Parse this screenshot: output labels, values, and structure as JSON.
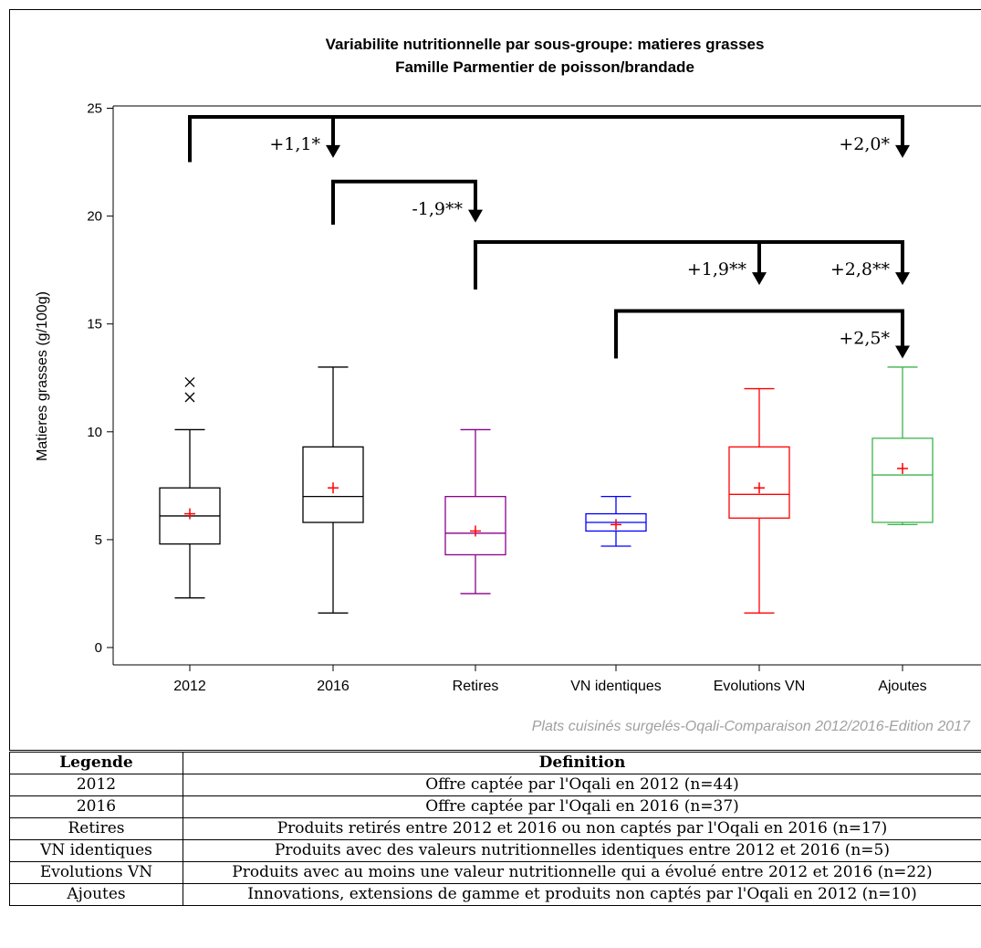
{
  "chart_data": {
    "type": "boxplot",
    "title": [
      "Variabilite nutritionnelle par sous-groupe: matieres grasses",
      "Famille Parmentier de poisson/brandade"
    ],
    "ylabel": "Matieres grasses (g/100g)",
    "xlabel": "",
    "ylim": [
      0,
      25
    ],
    "yticks": [
      0,
      5,
      10,
      15,
      20,
      25
    ],
    "grid": false,
    "categories": [
      "2012",
      "2016",
      "Retires",
      "VN identiques",
      "Evolutions VN",
      "Ajoutes"
    ],
    "boxes": [
      {
        "name": "2012",
        "color": "#000000",
        "min": 2.3,
        "q1": 4.8,
        "median": 6.1,
        "q3": 7.4,
        "max": 10.1,
        "mean": 6.2,
        "outliers": [
          11.6,
          12.3
        ]
      },
      {
        "name": "2016",
        "color": "#000000",
        "min": 1.6,
        "q1": 5.8,
        "median": 7.0,
        "q3": 9.3,
        "max": 13.0,
        "mean": 7.4,
        "outliers": []
      },
      {
        "name": "Retires",
        "color": "#8b008b",
        "min": 2.5,
        "q1": 4.3,
        "median": 5.3,
        "q3": 7.0,
        "max": 10.1,
        "mean": 5.4,
        "outliers": []
      },
      {
        "name": "VN identiques",
        "color": "#0000ff",
        "min": 4.7,
        "q1": 5.4,
        "median": 5.8,
        "q3": 6.2,
        "max": 7.0,
        "mean": 5.7,
        "outliers": []
      },
      {
        "name": "Evolutions VN",
        "color": "#ff0000",
        "min": 1.6,
        "q1": 6.0,
        "median": 7.1,
        "q3": 9.3,
        "max": 12.0,
        "mean": 7.4,
        "outliers": []
      },
      {
        "name": "Ajoutes",
        "color": "#3cb44b",
        "min": 5.7,
        "q1": 5.8,
        "median": 8.0,
        "q3": 9.7,
        "max": 13.0,
        "mean": 8.3,
        "outliers": []
      }
    ],
    "mean_color": "#ff0000",
    "annotations": [
      {
        "from": 0,
        "to": 1,
        "label": "+1,1*",
        "bar_y": 24.6,
        "start_y": 22.5,
        "end_y": 22.7
      },
      {
        "from": 0,
        "to": 5,
        "label": "+2,0*",
        "bar_y": 24.6,
        "start_y": 22.5,
        "end_y": 22.7
      },
      {
        "from": 1,
        "to": 2,
        "label": "-1,9**",
        "bar_y": 21.6,
        "start_y": 19.6,
        "end_y": 19.7
      },
      {
        "from": 2,
        "to": 4,
        "label": "+1,9**",
        "bar_y": 18.8,
        "start_y": 16.6,
        "end_y": 16.8
      },
      {
        "from": 2,
        "to": 5,
        "label": "+2,8**",
        "bar_y": 18.8,
        "start_y": 16.6,
        "end_y": 16.8
      },
      {
        "from": 3,
        "to": 5,
        "label": "+2,5*",
        "bar_y": 15.6,
        "start_y": 13.4,
        "end_y": 13.4
      }
    ],
    "source_note": "Plats cuisinés surgelés-Oqali-Comparaison 2012/2016-Edition 2017"
  },
  "legend_table": {
    "headers": [
      "Legende",
      "Definition"
    ],
    "rows": [
      [
        "2012",
        "Offre captée par l'Oqali en 2012 (n=44)"
      ],
      [
        "2016",
        "Offre captée par l'Oqali en 2016 (n=37)"
      ],
      [
        "Retires",
        "Produits retirés entre 2012 et 2016 ou non captés par l'Oqali en 2016 (n=17)"
      ],
      [
        "VN identiques",
        "Produits avec des valeurs nutritionnelles identiques entre 2012 et 2016 (n=5)"
      ],
      [
        "Evolutions VN",
        "Produits avec au moins une valeur nutritionnelle qui a évolué entre 2012 et 2016 (n=22)"
      ],
      [
        "Ajoutes",
        "Innovations, extensions de gamme et produits non captés par l'Oqali en 2012 (n=10)"
      ]
    ]
  }
}
